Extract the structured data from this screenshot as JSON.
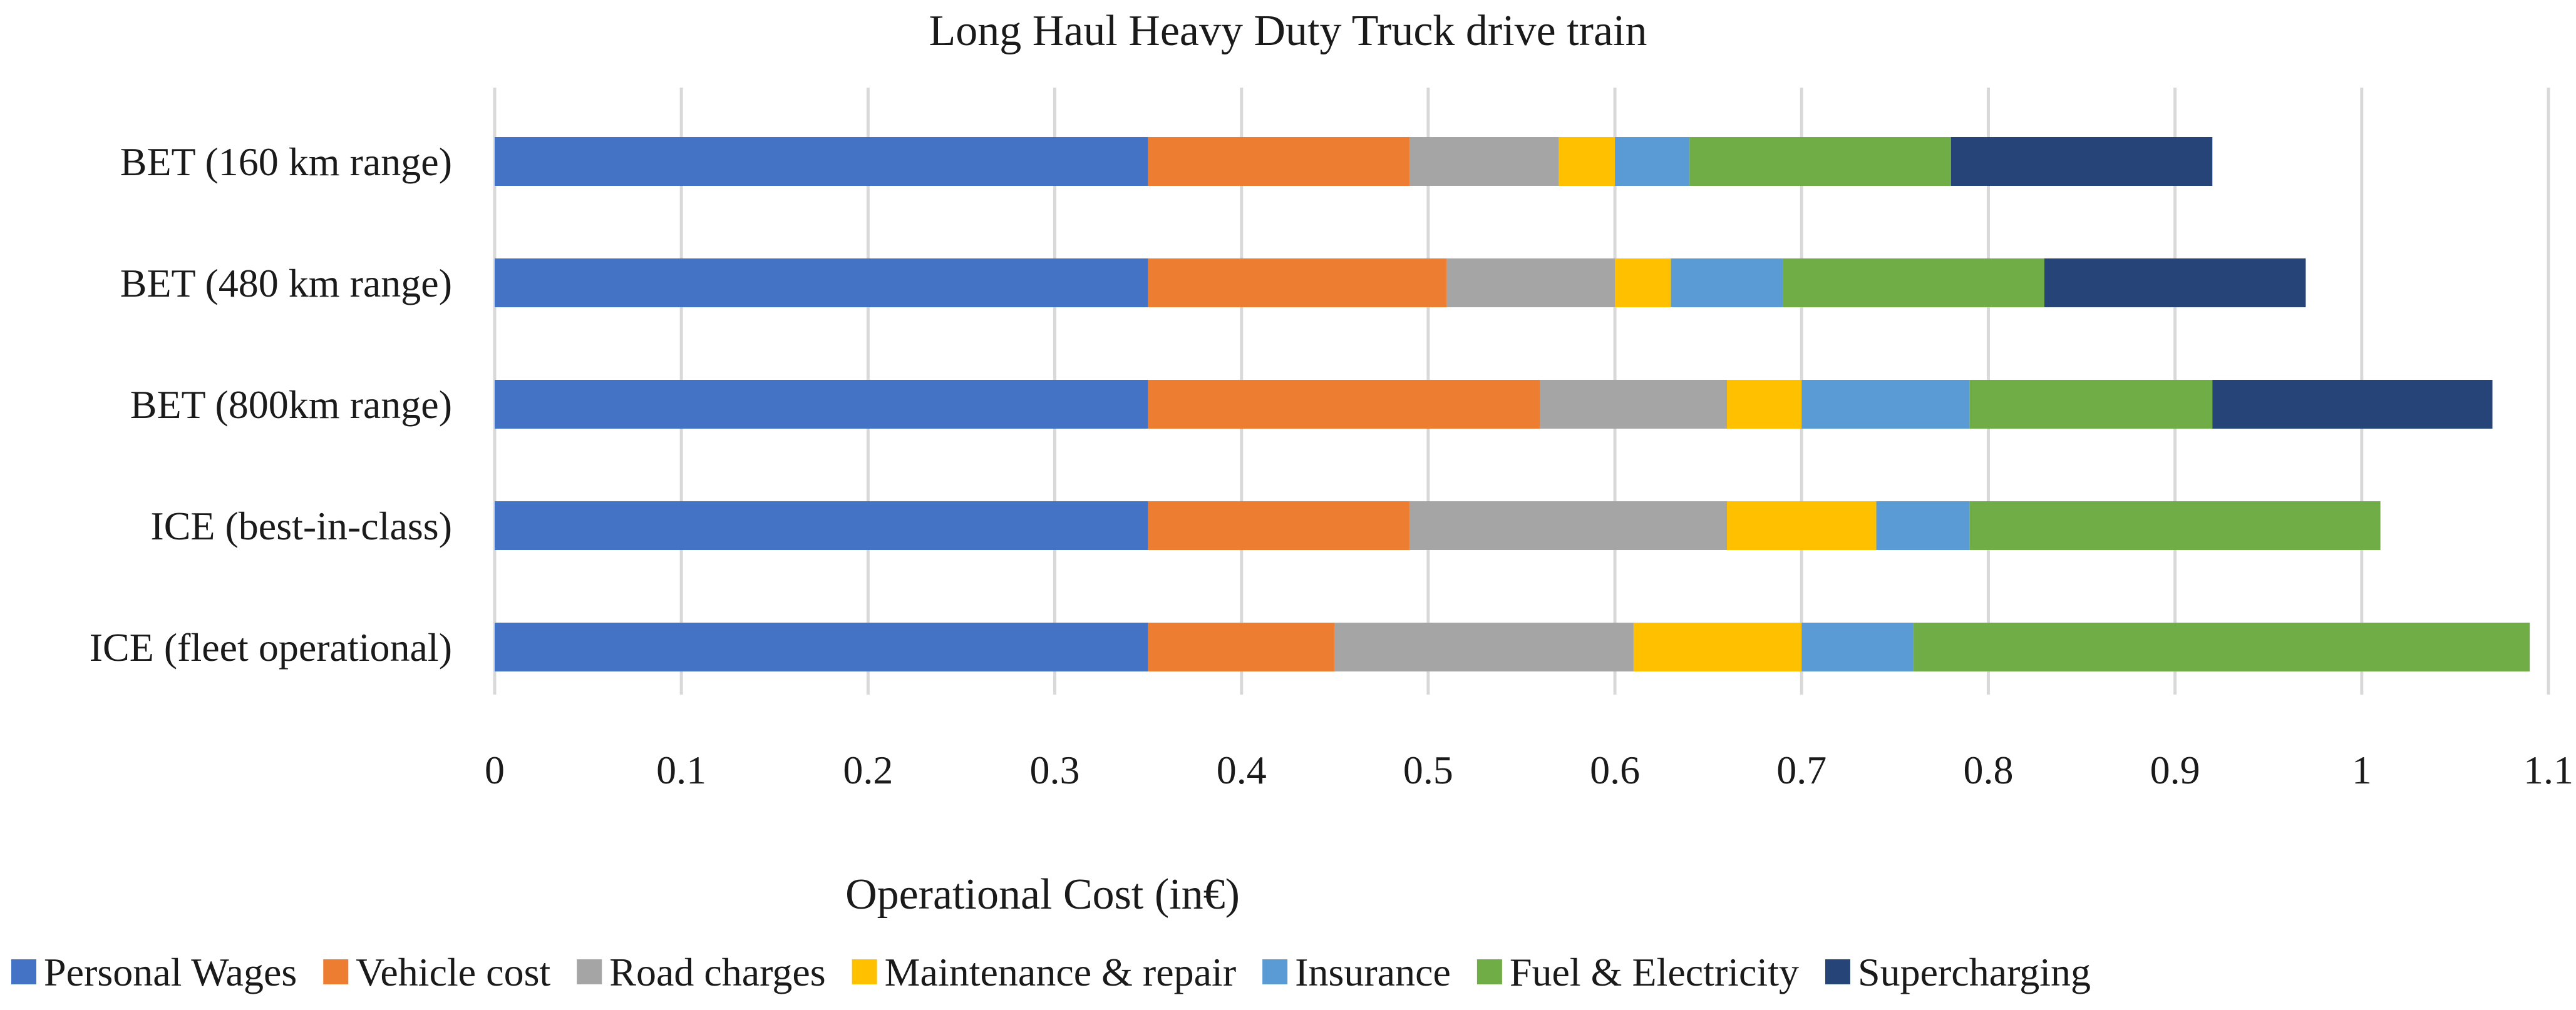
{
  "chart_data": {
    "type": "bar",
    "orientation": "horizontal",
    "stacked": true,
    "title": "Long Haul Heavy Duty Truck drive train",
    "xlabel": "Operational Cost (in€)",
    "ylabel": "",
    "xlim": [
      0,
      1.1
    ],
    "xticks": [
      0,
      0.1,
      0.2,
      0.3,
      0.4,
      0.5,
      0.6,
      0.7,
      0.8,
      0.9,
      1,
      1.1
    ],
    "xtick_labels": [
      "0",
      "0.1",
      "0.2",
      "0.3",
      "0.4",
      "0.5",
      "0.6",
      "0.7",
      "0.8",
      "0.9",
      "1",
      "1.1"
    ],
    "grid": "vertical",
    "legend_position": "bottom",
    "categories": [
      "BET (160 km range)",
      "BET (480 km range)",
      "BET (800km range)",
      "ICE (best-in-class)",
      "ICE (fleet operational)"
    ],
    "series": [
      {
        "name": "Personal Wages",
        "color": "#4472C4",
        "values": [
          0.35,
          0.35,
          0.35,
          0.35,
          0.35
        ]
      },
      {
        "name": "Vehicle cost",
        "color": "#ED7D31",
        "values": [
          0.14,
          0.16,
          0.21,
          0.14,
          0.1
        ]
      },
      {
        "name": "Road charges",
        "color": "#A5A5A5",
        "values": [
          0.08,
          0.09,
          0.1,
          0.17,
          0.16
        ]
      },
      {
        "name": "Maintenance & repair",
        "color": "#FFC000",
        "values": [
          0.03,
          0.03,
          0.04,
          0.08,
          0.09
        ]
      },
      {
        "name": "Insurance",
        "color": "#5B9BD5",
        "values": [
          0.04,
          0.06,
          0.09,
          0.05,
          0.06
        ]
      },
      {
        "name": "Fuel & Electricity",
        "color": "#70AD47",
        "values": [
          0.14,
          0.14,
          0.13,
          0.22,
          0.33
        ]
      },
      {
        "name": "Supercharging",
        "color": "#264478",
        "values": [
          0.14,
          0.14,
          0.15,
          0,
          0
        ]
      }
    ]
  }
}
